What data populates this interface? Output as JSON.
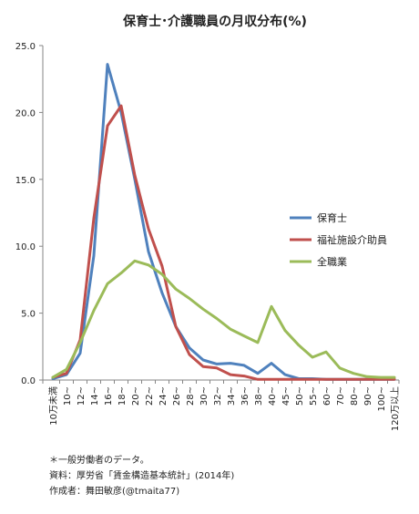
{
  "chart_data": {
    "type": "line",
    "title": "保育士･介護職員の月収分布(%)",
    "xlabel": "",
    "ylabel": "",
    "ylim": [
      0,
      25
    ],
    "yticks": [
      "0.0",
      "5.0",
      "10.0",
      "15.0",
      "20.0",
      "25.0"
    ],
    "ytick_values": [
      0,
      5,
      10,
      15,
      20,
      25
    ],
    "grid": false,
    "legend_position": "right",
    "categories": [
      "10万未満",
      "10~",
      "12~",
      "14~",
      "16~",
      "18~",
      "20~",
      "22~",
      "24~",
      "26~",
      "28~",
      "30~",
      "32~",
      "34~",
      "36~",
      "38~",
      "40~",
      "45~",
      "50~",
      "55~",
      "60~",
      "70~",
      "80~",
      "90~",
      "100~",
      "120万以上"
    ],
    "series": [
      {
        "name": "保育士",
        "color": "#4f81bd",
        "values": [
          0.1,
          0.4,
          2.0,
          9.3,
          23.6,
          20.0,
          15.0,
          9.6,
          6.5,
          4.0,
          2.4,
          1.5,
          1.2,
          1.25,
          1.1,
          0.5,
          1.25,
          0.4,
          0.1,
          0.1,
          0.05,
          0.05,
          0.05,
          0.05,
          0.05,
          0.05
        ]
      },
      {
        "name": "福祉施設介助員",
        "color": "#c0504d",
        "values": [
          0.2,
          0.5,
          3.0,
          12.1,
          19.0,
          20.5,
          15.3,
          11.3,
          8.5,
          4.0,
          1.9,
          1.0,
          0.9,
          0.4,
          0.3,
          0.05,
          0.05,
          0.05,
          0.05,
          0.05,
          0.05,
          0.05,
          0.05,
          0.05,
          0.05,
          0.05
        ]
      },
      {
        "name": "全職業",
        "color": "#9bbb59",
        "values": [
          0.2,
          0.8,
          2.8,
          5.2,
          7.2,
          8.0,
          8.9,
          8.6,
          7.9,
          6.8,
          6.1,
          5.3,
          4.6,
          3.8,
          3.3,
          2.8,
          5.5,
          3.7,
          2.6,
          1.7,
          2.1,
          0.9,
          0.5,
          0.25,
          0.2,
          0.2
        ]
      }
    ],
    "annotations": [
      "＊一般労働者のデータ。",
      "資料：厚労省「賃金構造基本統計」(2014年)",
      "作成者：舞田敏彦(@tmaita77)"
    ]
  }
}
